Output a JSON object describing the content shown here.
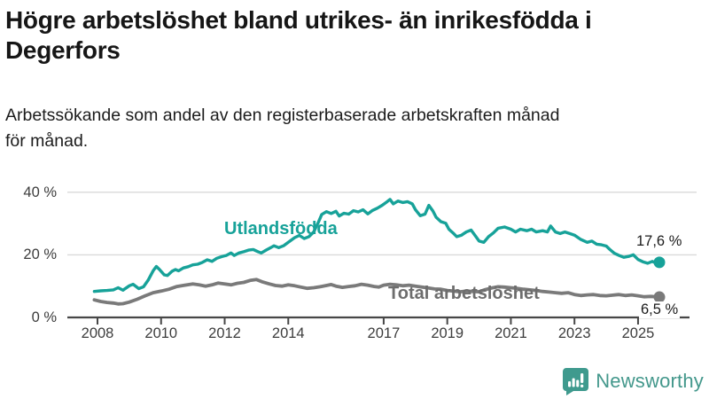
{
  "header": {
    "title_lines": [
      "Högre arbetslöshet bland utrikes- än inrikesfödda i",
      "Degerfors"
    ],
    "subtitle_lines": [
      "Arbetssökande som andel av den registerbaserade arbetskraften månad",
      "för månad."
    ]
  },
  "chart_data": {
    "type": "line",
    "title": "Högre arbetslöshet bland utrikes- än inrikesfödda i Degerfors",
    "subtitle": "Arbetssökande som andel av den registerbaserade arbetskraften månad för månad.",
    "unit": "%",
    "grid": "horizontal-only",
    "legend_position": "inline-labels-on-lines",
    "x_axis": {
      "range": [
        2007.9,
        2025.9
      ],
      "tick_years": [
        2008,
        2010,
        2012,
        2014,
        2017,
        2019,
        2021,
        2023,
        2025
      ]
    },
    "y_axis": {
      "range": [
        0,
        42
      ],
      "ticks": [
        {
          "value": 0,
          "label": "0 %"
        },
        {
          "value": 20,
          "label": "20 %"
        },
        {
          "value": 40,
          "label": "40 %"
        }
      ]
    },
    "colors": {
      "axis": "#474747",
      "gridline": "#d9d9d9",
      "tick_label": "#3d3d3d"
    },
    "series": [
      {
        "name": "Utlandsfödda",
        "color": "#17a299",
        "end_value": 17.6,
        "end_label": "17,6 %",
        "points": [
          [
            2007.9,
            8.3
          ],
          [
            2008.1,
            8.5
          ],
          [
            2008.3,
            8.6
          ],
          [
            2008.5,
            8.8
          ],
          [
            2008.65,
            9.5
          ],
          [
            2008.8,
            8.7
          ],
          [
            2009.0,
            10.1
          ],
          [
            2009.12,
            10.6
          ],
          [
            2009.3,
            9.2
          ],
          [
            2009.45,
            9.8
          ],
          [
            2009.6,
            12.0
          ],
          [
            2009.75,
            14.9
          ],
          [
            2009.85,
            16.3
          ],
          [
            2009.95,
            15.3
          ],
          [
            2010.1,
            13.6
          ],
          [
            2010.2,
            13.4
          ],
          [
            2010.35,
            14.8
          ],
          [
            2010.45,
            15.3
          ],
          [
            2010.55,
            14.9
          ],
          [
            2010.7,
            15.8
          ],
          [
            2010.85,
            16.2
          ],
          [
            2011.0,
            16.8
          ],
          [
            2011.15,
            17.0
          ],
          [
            2011.3,
            17.6
          ],
          [
            2011.45,
            18.4
          ],
          [
            2011.6,
            17.9
          ],
          [
            2011.75,
            18.9
          ],
          [
            2011.9,
            19.4
          ],
          [
            2012.05,
            19.8
          ],
          [
            2012.2,
            20.6
          ],
          [
            2012.3,
            19.8
          ],
          [
            2012.45,
            20.6
          ],
          [
            2012.6,
            21.0
          ],
          [
            2012.75,
            21.5
          ],
          [
            2012.9,
            21.7
          ],
          [
            2013.05,
            21.0
          ],
          [
            2013.15,
            20.6
          ],
          [
            2013.3,
            21.5
          ],
          [
            2013.45,
            22.3
          ],
          [
            2013.55,
            22.9
          ],
          [
            2013.7,
            22.3
          ],
          [
            2013.85,
            22.9
          ],
          [
            2014.0,
            24.0
          ],
          [
            2014.2,
            25.5
          ],
          [
            2014.35,
            26.2
          ],
          [
            2014.5,
            25.2
          ],
          [
            2014.65,
            25.8
          ],
          [
            2014.8,
            27.3
          ],
          [
            2014.95,
            30.5
          ],
          [
            2015.05,
            32.9
          ],
          [
            2015.2,
            33.8
          ],
          [
            2015.35,
            33.2
          ],
          [
            2015.5,
            33.9
          ],
          [
            2015.6,
            32.4
          ],
          [
            2015.75,
            33.3
          ],
          [
            2015.9,
            33.0
          ],
          [
            2016.05,
            34.1
          ],
          [
            2016.2,
            33.7
          ],
          [
            2016.35,
            34.4
          ],
          [
            2016.5,
            33.1
          ],
          [
            2016.65,
            34.2
          ],
          [
            2016.8,
            34.9
          ],
          [
            2016.95,
            35.8
          ],
          [
            2017.1,
            36.9
          ],
          [
            2017.2,
            37.7
          ],
          [
            2017.3,
            36.3
          ],
          [
            2017.45,
            37.2
          ],
          [
            2017.6,
            36.7
          ],
          [
            2017.75,
            37.0
          ],
          [
            2017.9,
            36.3
          ],
          [
            2018.0,
            34.4
          ],
          [
            2018.15,
            32.5
          ],
          [
            2018.3,
            33.0
          ],
          [
            2018.42,
            35.8
          ],
          [
            2018.55,
            34.0
          ],
          [
            2018.65,
            32.0
          ],
          [
            2018.8,
            30.6
          ],
          [
            2018.95,
            30.1
          ],
          [
            2019.05,
            28.2
          ],
          [
            2019.2,
            26.8
          ],
          [
            2019.3,
            25.8
          ],
          [
            2019.45,
            26.3
          ],
          [
            2019.6,
            27.3
          ],
          [
            2019.75,
            27.9
          ],
          [
            2019.9,
            25.8
          ],
          [
            2020.0,
            24.4
          ],
          [
            2020.15,
            24.0
          ],
          [
            2020.3,
            25.8
          ],
          [
            2020.45,
            27.0
          ],
          [
            2020.6,
            28.5
          ],
          [
            2020.8,
            28.9
          ],
          [
            2021.0,
            28.2
          ],
          [
            2021.15,
            27.3
          ],
          [
            2021.3,
            28.2
          ],
          [
            2021.5,
            27.7
          ],
          [
            2021.65,
            28.2
          ],
          [
            2021.8,
            27.3
          ],
          [
            2022.0,
            27.7
          ],
          [
            2022.15,
            27.3
          ],
          [
            2022.25,
            29.2
          ],
          [
            2022.4,
            27.3
          ],
          [
            2022.55,
            26.8
          ],
          [
            2022.7,
            27.3
          ],
          [
            2022.85,
            26.8
          ],
          [
            2023.0,
            26.3
          ],
          [
            2023.2,
            24.9
          ],
          [
            2023.4,
            24.0
          ],
          [
            2023.55,
            24.4
          ],
          [
            2023.7,
            23.4
          ],
          [
            2023.85,
            23.2
          ],
          [
            2024.0,
            22.8
          ],
          [
            2024.1,
            21.8
          ],
          [
            2024.25,
            20.5
          ],
          [
            2024.4,
            19.8
          ],
          [
            2024.55,
            19.2
          ],
          [
            2024.7,
            19.5
          ],
          [
            2024.85,
            20.0
          ],
          [
            2025.0,
            18.5
          ],
          [
            2025.15,
            17.8
          ],
          [
            2025.3,
            17.3
          ],
          [
            2025.45,
            17.9
          ],
          [
            2025.55,
            17.4
          ],
          [
            2025.67,
            17.6
          ]
        ]
      },
      {
        "name": "Total arbetslöshet",
        "color": "#7a7a7a",
        "end_value": 6.5,
        "end_label": "6,5 %",
        "points": [
          [
            2007.9,
            5.6
          ],
          [
            2008.1,
            5.1
          ],
          [
            2008.3,
            4.8
          ],
          [
            2008.5,
            4.6
          ],
          [
            2008.65,
            4.3
          ],
          [
            2008.8,
            4.4
          ],
          [
            2009.0,
            4.9
          ],
          [
            2009.25,
            5.8
          ],
          [
            2009.5,
            6.9
          ],
          [
            2009.75,
            7.9
          ],
          [
            2010.0,
            8.4
          ],
          [
            2010.25,
            9.0
          ],
          [
            2010.5,
            9.9
          ],
          [
            2010.75,
            10.3
          ],
          [
            2011.0,
            10.7
          ],
          [
            2011.2,
            10.4
          ],
          [
            2011.4,
            10.0
          ],
          [
            2011.6,
            10.4
          ],
          [
            2011.8,
            11.0
          ],
          [
            2012.0,
            10.7
          ],
          [
            2012.2,
            10.4
          ],
          [
            2012.4,
            10.9
          ],
          [
            2012.6,
            11.2
          ],
          [
            2012.8,
            11.8
          ],
          [
            2013.0,
            12.1
          ],
          [
            2013.2,
            11.3
          ],
          [
            2013.4,
            10.7
          ],
          [
            2013.6,
            10.2
          ],
          [
            2013.8,
            10.0
          ],
          [
            2014.0,
            10.4
          ],
          [
            2014.2,
            10.1
          ],
          [
            2014.4,
            9.7
          ],
          [
            2014.6,
            9.3
          ],
          [
            2014.8,
            9.5
          ],
          [
            2015.0,
            9.8
          ],
          [
            2015.2,
            10.2
          ],
          [
            2015.35,
            10.5
          ],
          [
            2015.5,
            10.0
          ],
          [
            2015.7,
            9.6
          ],
          [
            2015.9,
            9.9
          ],
          [
            2016.1,
            10.1
          ],
          [
            2016.3,
            10.6
          ],
          [
            2016.5,
            10.3
          ],
          [
            2016.7,
            9.9
          ],
          [
            2016.85,
            9.7
          ],
          [
            2017.0,
            10.3
          ],
          [
            2017.2,
            10.6
          ],
          [
            2017.4,
            10.4
          ],
          [
            2017.6,
            10.1
          ],
          [
            2017.8,
            10.3
          ],
          [
            2018.0,
            10.0
          ],
          [
            2018.2,
            9.7
          ],
          [
            2018.4,
            9.4
          ],
          [
            2018.6,
            9.1
          ],
          [
            2018.8,
            9.0
          ],
          [
            2019.0,
            8.6
          ],
          [
            2019.2,
            8.4
          ],
          [
            2019.4,
            8.2
          ],
          [
            2019.6,
            8.4
          ],
          [
            2019.8,
            8.3
          ],
          [
            2020.0,
            8.2
          ],
          [
            2020.2,
            8.9
          ],
          [
            2020.4,
            9.4
          ],
          [
            2020.6,
            9.8
          ],
          [
            2020.8,
            9.7
          ],
          [
            2021.0,
            9.5
          ],
          [
            2021.2,
            9.3
          ],
          [
            2021.4,
            9.0
          ],
          [
            2021.6,
            8.8
          ],
          [
            2021.8,
            8.6
          ],
          [
            2022.0,
            8.3
          ],
          [
            2022.2,
            8.1
          ],
          [
            2022.4,
            7.9
          ],
          [
            2022.6,
            7.7
          ],
          [
            2022.8,
            7.9
          ],
          [
            2023.0,
            7.3
          ],
          [
            2023.2,
            7.0
          ],
          [
            2023.4,
            7.2
          ],
          [
            2023.6,
            7.3
          ],
          [
            2023.8,
            7.0
          ],
          [
            2024.0,
            6.9
          ],
          [
            2024.2,
            7.1
          ],
          [
            2024.4,
            7.3
          ],
          [
            2024.6,
            7.0
          ],
          [
            2024.8,
            7.2
          ],
          [
            2025.0,
            6.9
          ],
          [
            2025.2,
            6.6
          ],
          [
            2025.4,
            6.7
          ],
          [
            2025.55,
            6.6
          ],
          [
            2025.67,
            6.5
          ]
        ]
      }
    ]
  },
  "footer": {
    "brand": "Newsworthy",
    "brand_color": "#44988c",
    "logo_icon": "bar-chart-speech-bubble"
  }
}
